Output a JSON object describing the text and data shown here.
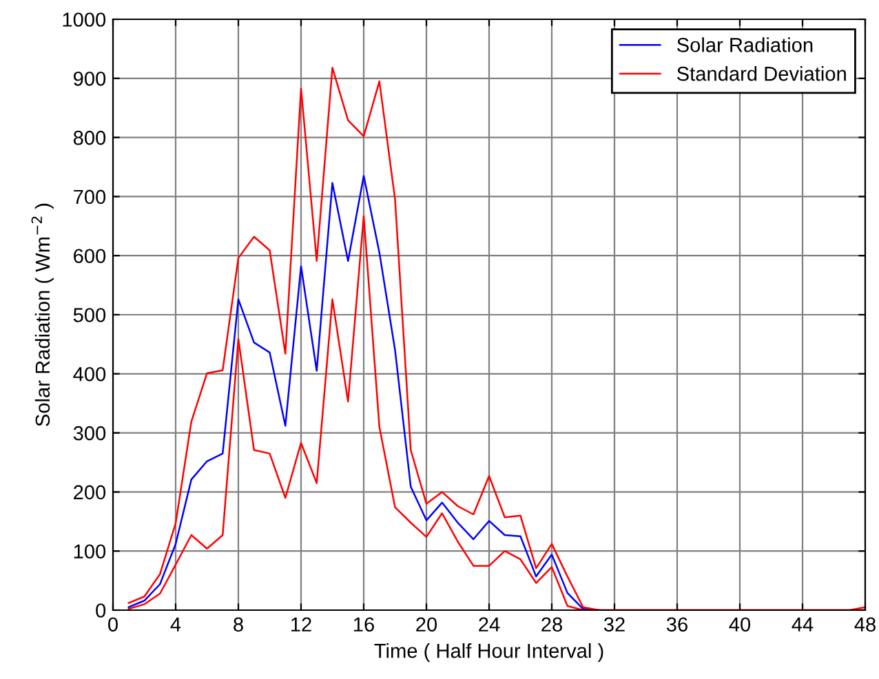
{
  "chart_data": {
    "type": "line",
    "xlabel": "Time ( Half Hour Interval )",
    "ylabel": "Solar Radiation ( Wm$^{−2}$ )",
    "x": [
      1,
      2,
      3,
      4,
      5,
      6,
      7,
      8,
      9,
      10,
      11,
      12,
      13,
      14,
      15,
      16,
      17,
      18,
      19,
      20,
      21,
      22,
      23,
      24,
      25,
      26,
      27,
      28,
      29,
      30,
      31,
      32,
      33,
      34,
      35,
      36,
      37,
      38,
      39,
      40,
      41,
      42,
      43,
      44,
      45,
      46,
      47,
      48
    ],
    "series": [
      {
        "name": "Solar Radiation",
        "color": "#0000ff",
        "values": [
          5,
          16,
          44,
          112,
          221,
          252,
          265,
          526,
          453,
          436,
          312,
          582,
          405,
          723,
          591,
          735,
          605,
          440,
          209,
          152,
          182,
          148,
          120,
          151,
          127,
          125,
          57,
          94,
          29,
          2,
          0,
          null,
          null,
          null,
          null,
          null,
          null,
          null,
          null,
          null,
          null,
          null,
          null,
          null,
          null,
          null,
          null,
          null
        ]
      },
      {
        "name": "Standard Deviation",
        "color": "#ff0000",
        "values": [
          12,
          23,
          61,
          147,
          319,
          401,
          406,
          596,
          632,
          609,
          434,
          883,
          591,
          918,
          829,
          802,
          895,
          695,
          271,
          180,
          200,
          176,
          162,
          227,
          157,
          160,
          71,
          112,
          57,
          5,
          0,
          0,
          0,
          0,
          0,
          0,
          0,
          0,
          0,
          0,
          0,
          0,
          0,
          0,
          0,
          0,
          0,
          5
        ]
      },
      {
        "color": "#ff0000",
        "values": [
          2,
          10,
          28,
          77,
          127,
          104,
          127,
          459,
          271,
          265,
          190,
          283,
          215,
          526,
          353,
          667,
          310,
          174,
          148,
          124,
          164,
          116,
          75,
          75,
          100,
          86,
          46,
          73,
          7,
          0,
          0,
          0,
          0,
          0,
          0,
          0,
          0,
          0,
          0,
          0,
          0,
          0,
          0,
          0,
          0,
          0,
          0,
          0
        ]
      }
    ],
    "xlim": [
      0,
      48
    ],
    "xticks": [
      0,
      4,
      8,
      12,
      16,
      20,
      24,
      28,
      32,
      36,
      40,
      44,
      48
    ],
    "ylim": [
      0,
      1000
    ],
    "yticks": [
      0,
      100,
      200,
      300,
      400,
      500,
      600,
      700,
      800,
      900,
      1000
    ],
    "grid": true,
    "legend": "top right",
    "marker": "none",
    "line_style": "solid"
  }
}
